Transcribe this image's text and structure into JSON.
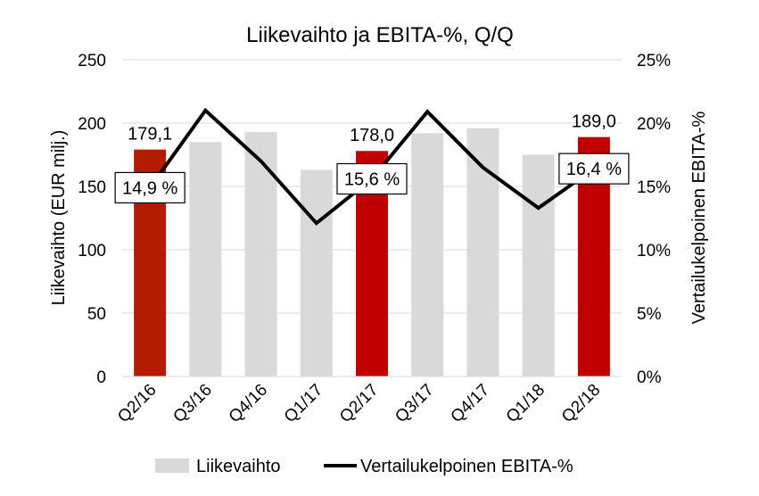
{
  "chart_data": {
    "type": "bar",
    "title": "Liikevaihto ja EBITA-%, Q/Q",
    "ylabel": "Liikevaihto (EUR milj.)",
    "y2label": "Vertailukelpoinen  EBITA-%",
    "ylim": [
      0,
      250
    ],
    "y2lim": [
      0,
      25
    ],
    "y_ticks": [
      "0",
      "50",
      "100",
      "150",
      "200",
      "250"
    ],
    "y2_ticks": [
      "0%",
      "5%",
      "10%",
      "15%",
      "20%",
      "25%"
    ],
    "categories": [
      "Q2/16",
      "Q3/16",
      "Q4/16",
      "Q1/17",
      "Q2/17",
      "Q3/17",
      "Q4/17",
      "Q1/18",
      "Q2/18"
    ],
    "series": [
      {
        "name": "Liikevaihto",
        "type": "bar",
        "values": [
          179.1,
          185,
          193,
          163,
          178.0,
          192,
          196,
          175,
          189.0
        ],
        "highlight": [
          true,
          false,
          false,
          false,
          true,
          false,
          false,
          false,
          true
        ],
        "color": "#d9d9d9",
        "highlight_colors": [
          "#b31c00",
          null,
          null,
          null,
          "#c00000",
          null,
          null,
          null,
          "#c00000"
        ],
        "data_labels": [
          "179,1",
          null,
          null,
          null,
          "178,0",
          null,
          null,
          null,
          "189,0"
        ]
      },
      {
        "name": "Vertailukelpoinen EBITA-%",
        "type": "line",
        "axis": "right",
        "values": [
          14.9,
          21.0,
          17.0,
          12.1,
          15.6,
          20.9,
          16.5,
          13.3,
          16.4
        ],
        "color": "#000000",
        "data_labels": [
          "14,9 %",
          null,
          null,
          null,
          "15,6 %",
          null,
          null,
          null,
          "16,4 %"
        ]
      }
    ],
    "grid": true,
    "legend": "bottom"
  }
}
